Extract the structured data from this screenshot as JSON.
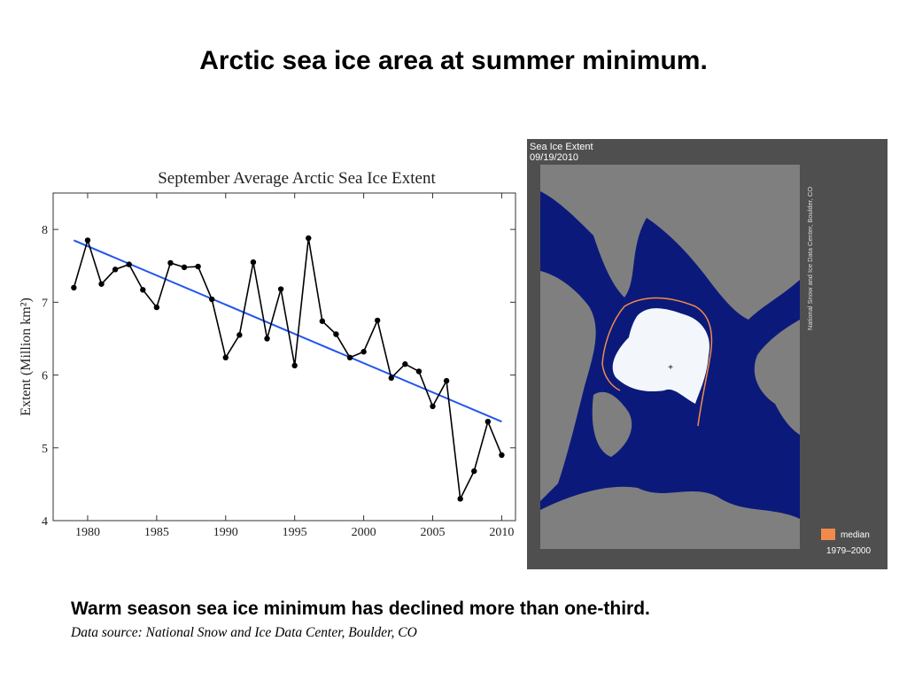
{
  "slide": {
    "title": "Arctic sea ice area at summer minimum.",
    "caption": "Warm season sea ice minimum has declined more than one-third.",
    "source": "Data source: National Snow and Ice Data Center, Boulder, CO"
  },
  "chart_data": {
    "type": "line",
    "title": "September Average Arctic Sea Ice Extent",
    "xlabel": "",
    "ylabel": "Extent (Million km²)",
    "xlim": [
      1977.5,
      2011
    ],
    "ylim": [
      4,
      8.5
    ],
    "xticks": [
      1980,
      1985,
      1990,
      1995,
      2000,
      2005,
      2010
    ],
    "yticks": [
      4,
      5,
      6,
      7,
      8
    ],
    "grid": false,
    "x": [
      1979,
      1980,
      1981,
      1982,
      1983,
      1984,
      1985,
      1986,
      1987,
      1988,
      1989,
      1990,
      1991,
      1992,
      1993,
      1994,
      1995,
      1996,
      1997,
      1998,
      1999,
      2000,
      2001,
      2002,
      2003,
      2004,
      2005,
      2006,
      2007,
      2008,
      2009,
      2010
    ],
    "series": [
      {
        "values": [
          7.2,
          7.85,
          7.25,
          7.45,
          7.52,
          7.17,
          6.93,
          7.54,
          7.48,
          7.49,
          7.04,
          6.24,
          6.55,
          7.55,
          6.5,
          7.18,
          6.13,
          7.88,
          6.74,
          6.56,
          6.24,
          6.32,
          6.75,
          5.96,
          6.15,
          6.05,
          5.57,
          5.92,
          4.3,
          4.68,
          5.36,
          4.9
        ],
        "color": "#000000"
      }
    ],
    "trendline": {
      "x": [
        1979,
        2010
      ],
      "y": [
        7.85,
        5.36
      ],
      "color": "#2255ee"
    }
  },
  "map": {
    "title": "Sea Ice Extent",
    "date": "09/19/2010",
    "credit": "National Snow and Ice Data Center, Boulder, CO",
    "legend_label": "median",
    "legend_years": "1979–2000",
    "colors": {
      "ocean": "#0b1a7a",
      "land": "#7f7f7f",
      "ice": "#f3f6fb",
      "median_line": "#f28a4b",
      "panel": "#4f4f4f"
    }
  }
}
